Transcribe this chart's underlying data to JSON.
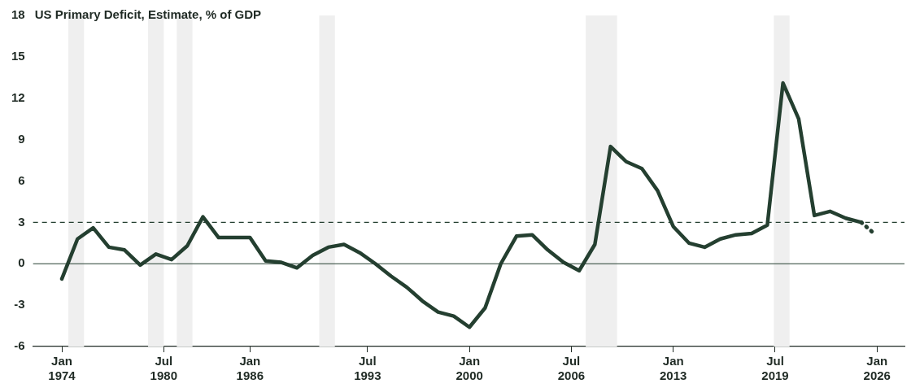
{
  "chart_data": {
    "type": "line",
    "title": "US Primary Deficit, Estimate, % of GDP",
    "xlim": [
      "1972-03",
      "2027-10"
    ],
    "xticks": [
      {
        "value": "1974-01",
        "label": "Jan 1974"
      },
      {
        "value": "1980-07",
        "label": "Jul 1980"
      },
      {
        "value": "1986-01",
        "label": "Jan 1986"
      },
      {
        "value": "1993-07",
        "label": "Jul 1993"
      },
      {
        "value": "2000-01",
        "label": "Jan 2000"
      },
      {
        "value": "2006-07",
        "label": "Jul 2006"
      },
      {
        "value": "2013-01",
        "label": "Jan 2013"
      },
      {
        "value": "2019-07",
        "label": "Jul 2019"
      },
      {
        "value": "2026-01",
        "label": "Jan 2026"
      }
    ],
    "ylim": [
      -6,
      18
    ],
    "yticks": [
      -6,
      -3,
      0,
      3,
      6,
      9,
      12,
      15,
      18
    ],
    "grid": false,
    "legend": false,
    "marker": "none",
    "series": [
      {
        "color": "#243f30",
        "line_style": "solid",
        "x": [
          "1974",
          "1975",
          "1976",
          "1977",
          "1978",
          "1979",
          "1980",
          "1981",
          "1982",
          "1983",
          "1984",
          "1985",
          "1986",
          "1987",
          "1988",
          "1989",
          "1990",
          "1991",
          "1992",
          "1993",
          "1994",
          "1995",
          "1996",
          "1997",
          "1998",
          "1999",
          "2000",
          "2001",
          "2002",
          "2003",
          "2004",
          "2005",
          "2006",
          "2007",
          "2008",
          "2009",
          "2010",
          "2011",
          "2012",
          "2013",
          "2014",
          "2015",
          "2016",
          "2017",
          "2018",
          "2019",
          "2020",
          "2021",
          "2022",
          "2023",
          "2024",
          "2025"
        ],
        "values": [
          -1.1,
          1.8,
          2.6,
          1.2,
          1.0,
          -0.1,
          0.7,
          0.3,
          1.3,
          3.4,
          1.9,
          1.9,
          1.9,
          0.2,
          0.1,
          -0.3,
          0.6,
          1.2,
          1.4,
          0.8,
          0.0,
          -0.9,
          -1.7,
          -2.7,
          -3.5,
          -3.8,
          -4.6,
          -3.2,
          0.0,
          2.0,
          2.1,
          1.0,
          0.1,
          -0.5,
          1.4,
          8.5,
          7.4,
          6.9,
          5.3,
          2.7,
          1.5,
          1.2,
          1.8,
          2.1,
          2.2,
          2.8,
          13.1,
          10.5,
          3.5,
          3.8,
          3.3,
          3.0
        ]
      },
      {
        "color": "#243f30",
        "line_style": "dotted",
        "x": [
          "2025",
          "2025-10"
        ],
        "values": [
          3.0,
          2.25
        ]
      }
    ],
    "ref_lines": [
      {
        "axis": "y",
        "value": 3,
        "color": "#243f30",
        "line_style": "dashed"
      },
      {
        "axis": "y",
        "value": 0,
        "color": "#243f30",
        "line_style": "solid"
      }
    ],
    "bands": [
      {
        "axis": "x",
        "from": "1974-06",
        "to": "1975-06",
        "color": "#efefef"
      },
      {
        "axis": "x",
        "from": "1979-07",
        "to": "1980-07",
        "color": "#efefef"
      },
      {
        "axis": "x",
        "from": "1981-05",
        "to": "1982-05",
        "color": "#efefef"
      },
      {
        "axis": "x",
        "from": "1990-06",
        "to": "1991-06",
        "color": "#efefef"
      },
      {
        "axis": "x",
        "from": "2007-06",
        "to": "2009-06",
        "color": "#efefef"
      },
      {
        "axis": "x",
        "from": "2019-06",
        "to": "2020-06",
        "color": "#efefef"
      }
    ]
  }
}
